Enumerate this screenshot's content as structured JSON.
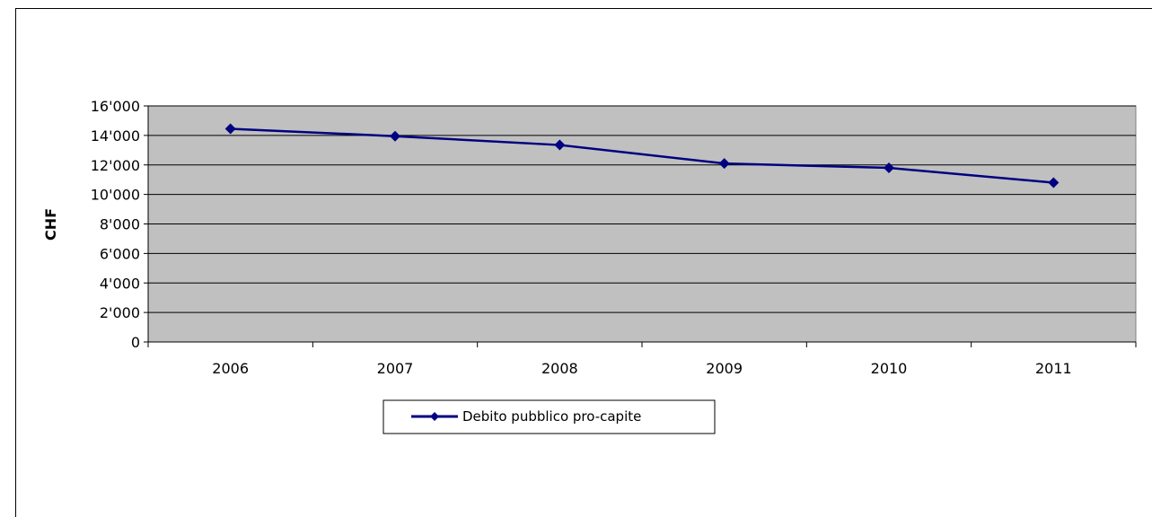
{
  "chart_data": {
    "type": "line",
    "title": "",
    "xlabel": "",
    "ylabel": "CHF",
    "categories": [
      "2006",
      "2007",
      "2008",
      "2009",
      "2010",
      "2011"
    ],
    "y_ticks": [
      "0",
      "2'000",
      "4'000",
      "6'000",
      "8'000",
      "10'000",
      "12'000",
      "14'000",
      "16'000"
    ],
    "ylim": [
      0,
      16000
    ],
    "grid": true,
    "legend_position": "bottom",
    "series": [
      {
        "name": "Debito pubblico pro-capite",
        "values": [
          14450,
          13950,
          13350,
          12100,
          11800,
          10800
        ],
        "color": "#000080"
      }
    ],
    "plot_background": "#c0c0c0"
  }
}
